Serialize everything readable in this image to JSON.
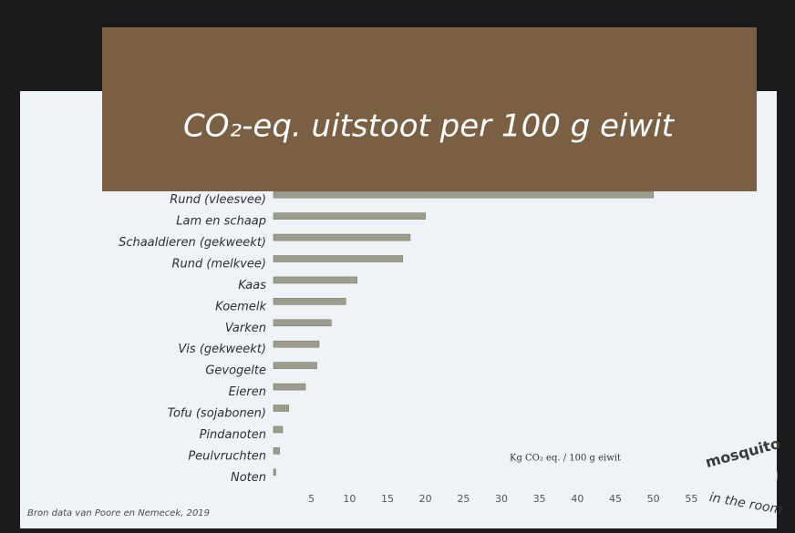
{
  "chart_data": {
    "type": "barh",
    "title": "CO₂-eq. uitstoot per 100 g eiwit",
    "xlabel": "Kg CO₂ eq. / 100 g eiwit",
    "source": "Bron data van Poore en Nemecek, 2019",
    "logo": [
      "mosquito",
      "in the room"
    ],
    "categories": [
      "Rund (vleesvee)",
      "Lam en schaap",
      "Schaaldieren (gekweekt)",
      "Rund (melkvee)",
      "Kaas",
      "Koemelk",
      "Varken",
      "Vis (gekweekt)",
      "Gevogelte",
      "Eieren",
      "Tofu (sojabonen)",
      "Pindanoten",
      "Peulvruchten",
      "Noten"
    ],
    "values": [
      50,
      20,
      18,
      17,
      11,
      9.5,
      7.6,
      6,
      5.7,
      4.2,
      2,
      1.2,
      0.8,
      0.3
    ],
    "color": "#9c9d8c",
    "xlim": [
      0,
      60
    ],
    "xticks": [
      5,
      10,
      15,
      20,
      25,
      30,
      35,
      40,
      45,
      50,
      55
    ],
    "grid": false
  }
}
